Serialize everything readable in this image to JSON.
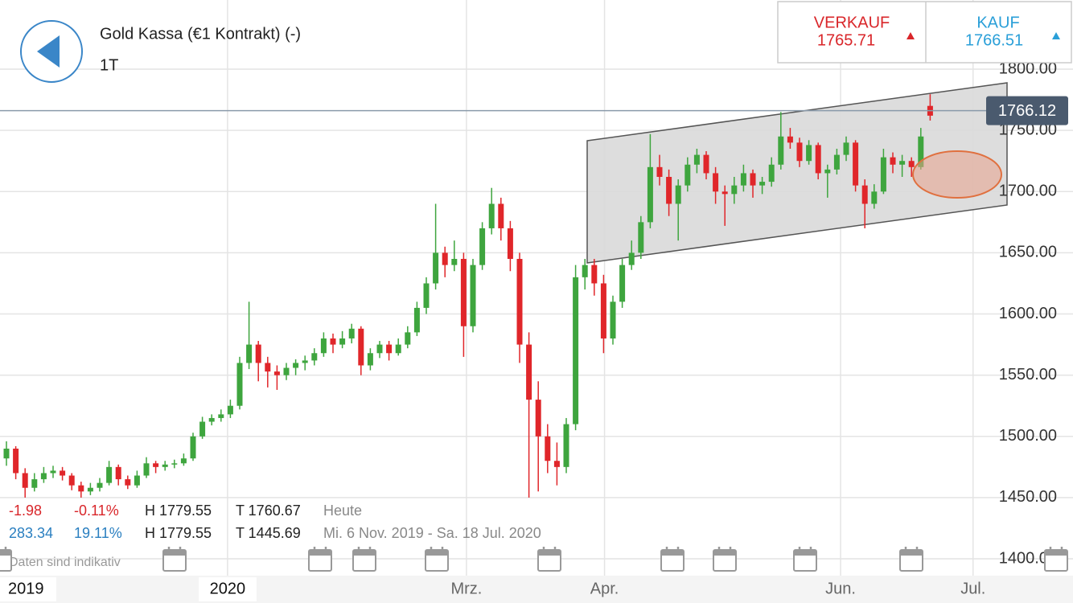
{
  "header": {
    "title": "Gold Kassa (€1 Kontrakt) (-)",
    "period": "1T"
  },
  "quote": {
    "sell_label": "VERKAUF",
    "sell": 1765.71,
    "buy_label": "KAUF",
    "buy": 1766.51
  },
  "stats": {
    "today": {
      "change": "-1.98",
      "change_pct": "-0.11%",
      "high": "H 1779.55",
      "low": "T 1760.67",
      "range": "Heute"
    },
    "period": {
      "change": "283.34",
      "change_pct": "19.11%",
      "high": "H 1779.55",
      "low": "T 1445.69",
      "range": "Mi. 6 Nov. 2019 - Sa. 18 Jul. 2020"
    },
    "note": "Daten sind indikativ"
  },
  "chart_data": {
    "type": "candlestick",
    "up_color": "#3ea53e",
    "down_color": "#e0262a",
    "last_price": 1766.12,
    "xlim": [
      -0.69,
      114.31
    ],
    "ylim": [
      1363.9,
      1856.5
    ],
    "xticks": [
      {
        "value": 2.3,
        "label": "2019"
      },
      {
        "value": 23.7,
        "label": "2020"
      },
      {
        "value": 49.3,
        "label": "Mrz."
      },
      {
        "value": 64.1,
        "label": "Apr."
      },
      {
        "value": 89.4,
        "label": "Jun."
      },
      {
        "value": 103.6,
        "label": "Jul."
      }
    ],
    "yticks": [
      {
        "value": 1400,
        "label": "1400.00"
      },
      {
        "value": 1450,
        "label": "1450.00"
      },
      {
        "value": 1500,
        "label": "1500.00"
      },
      {
        "value": 1550,
        "label": "1550.00"
      },
      {
        "value": 1600,
        "label": "1600.00"
      },
      {
        "value": 1650,
        "label": "1650.00"
      },
      {
        "value": 1700,
        "label": "1700.00"
      },
      {
        "value": 1750,
        "label": "1750.00"
      },
      {
        "value": 1800,
        "label": "1800.00"
      }
    ],
    "grid": true,
    "ohlc": [
      [
        1482,
        1496,
        1476,
        1490
      ],
      [
        1490,
        1492,
        1465,
        1470
      ],
      [
        1470,
        1474,
        1450,
        1458
      ],
      [
        1458,
        1470,
        1455,
        1465
      ],
      [
        1465,
        1475,
        1462,
        1470
      ],
      [
        1470,
        1476,
        1466,
        1472
      ],
      [
        1472,
        1475,
        1464,
        1468
      ],
      [
        1468,
        1470,
        1456,
        1460
      ],
      [
        1460,
        1463,
        1450,
        1455
      ],
      [
        1455,
        1462,
        1452,
        1458
      ],
      [
        1458,
        1466,
        1455,
        1462
      ],
      [
        1462,
        1480,
        1460,
        1475
      ],
      [
        1475,
        1477,
        1460,
        1465
      ],
      [
        1465,
        1468,
        1457,
        1460
      ],
      [
        1460,
        1472,
        1458,
        1468
      ],
      [
        1468,
        1483,
        1466,
        1478
      ],
      [
        1478,
        1480,
        1470,
        1475
      ],
      [
        1475,
        1480,
        1472,
        1477
      ],
      [
        1477,
        1481,
        1474,
        1478
      ],
      [
        1478,
        1486,
        1476,
        1482
      ],
      [
        1482,
        1503,
        1480,
        1500
      ],
      [
        1500,
        1516,
        1498,
        1512
      ],
      [
        1512,
        1518,
        1509,
        1515
      ],
      [
        1515,
        1522,
        1512,
        1518
      ],
      [
        1518,
        1530,
        1515,
        1525
      ],
      [
        1525,
        1565,
        1522,
        1560
      ],
      [
        1560,
        1610,
        1555,
        1575
      ],
      [
        1575,
        1578,
        1545,
        1560
      ],
      [
        1560,
        1565,
        1540,
        1553
      ],
      [
        1553,
        1558,
        1538,
        1550
      ],
      [
        1550,
        1560,
        1546,
        1556
      ],
      [
        1556,
        1563,
        1550,
        1560
      ],
      [
        1560,
        1566,
        1554,
        1562
      ],
      [
        1562,
        1572,
        1558,
        1568
      ],
      [
        1568,
        1585,
        1565,
        1580
      ],
      [
        1580,
        1584,
        1568,
        1575
      ],
      [
        1575,
        1586,
        1572,
        1580
      ],
      [
        1580,
        1592,
        1576,
        1588
      ],
      [
        1588,
        1590,
        1550,
        1558
      ],
      [
        1558,
        1572,
        1554,
        1568
      ],
      [
        1568,
        1578,
        1564,
        1575
      ],
      [
        1575,
        1578,
        1562,
        1568
      ],
      [
        1568,
        1580,
        1566,
        1575
      ],
      [
        1575,
        1590,
        1572,
        1585
      ],
      [
        1585,
        1610,
        1582,
        1605
      ],
      [
        1605,
        1630,
        1600,
        1625
      ],
      [
        1625,
        1690,
        1620,
        1650
      ],
      [
        1650,
        1655,
        1630,
        1640
      ],
      [
        1640,
        1660,
        1635,
        1645
      ],
      [
        1645,
        1650,
        1565,
        1590
      ],
      [
        1590,
        1645,
        1585,
        1640
      ],
      [
        1640,
        1675,
        1636,
        1670
      ],
      [
        1670,
        1703,
        1665,
        1690
      ],
      [
        1690,
        1695,
        1660,
        1670
      ],
      [
        1670,
        1676,
        1635,
        1645
      ],
      [
        1645,
        1650,
        1560,
        1575
      ],
      [
        1575,
        1585,
        1450,
        1530
      ],
      [
        1530,
        1545,
        1455,
        1500
      ],
      [
        1500,
        1510,
        1470,
        1480
      ],
      [
        1480,
        1495,
        1460,
        1475
      ],
      [
        1475,
        1515,
        1470,
        1510
      ],
      [
        1510,
        1640,
        1505,
        1630
      ],
      [
        1630,
        1645,
        1620,
        1640
      ],
      [
        1640,
        1645,
        1615,
        1625
      ],
      [
        1625,
        1632,
        1568,
        1580
      ],
      [
        1580,
        1615,
        1575,
        1610
      ],
      [
        1610,
        1645,
        1605,
        1640
      ],
      [
        1640,
        1660,
        1636,
        1650
      ],
      [
        1650,
        1680,
        1645,
        1675
      ],
      [
        1675,
        1747,
        1670,
        1720
      ],
      [
        1720,
        1730,
        1705,
        1712
      ],
      [
        1712,
        1718,
        1680,
        1690
      ],
      [
        1690,
        1710,
        1660,
        1705
      ],
      [
        1705,
        1728,
        1700,
        1722
      ],
      [
        1722,
        1735,
        1715,
        1730
      ],
      [
        1730,
        1733,
        1710,
        1715
      ],
      [
        1715,
        1720,
        1690,
        1700
      ],
      [
        1700,
        1705,
        1672,
        1698
      ],
      [
        1698,
        1712,
        1690,
        1705
      ],
      [
        1705,
        1722,
        1700,
        1715
      ],
      [
        1715,
        1718,
        1695,
        1705
      ],
      [
        1705,
        1712,
        1698,
        1708
      ],
      [
        1708,
        1728,
        1704,
        1722
      ],
      [
        1722,
        1765,
        1718,
        1745
      ],
      [
        1745,
        1752,
        1735,
        1740
      ],
      [
        1740,
        1744,
        1720,
        1725
      ],
      [
        1725,
        1742,
        1722,
        1738
      ],
      [
        1738,
        1740,
        1710,
        1715
      ],
      [
        1715,
        1722,
        1695,
        1718
      ],
      [
        1718,
        1735,
        1714,
        1730
      ],
      [
        1730,
        1745,
        1725,
        1740
      ],
      [
        1740,
        1742,
        1700,
        1705
      ],
      [
        1705,
        1710,
        1670,
        1690
      ],
      [
        1690,
        1706,
        1686,
        1700
      ],
      [
        1700,
        1735,
        1698,
        1728
      ],
      [
        1728,
        1732,
        1715,
        1722
      ],
      [
        1722,
        1730,
        1712,
        1725
      ],
      [
        1725,
        1728,
        1712,
        1720
      ],
      [
        1720,
        1752,
        1718,
        1745
      ],
      [
        1770,
        1779.55,
        1758,
        1762
      ]
    ]
  }
}
